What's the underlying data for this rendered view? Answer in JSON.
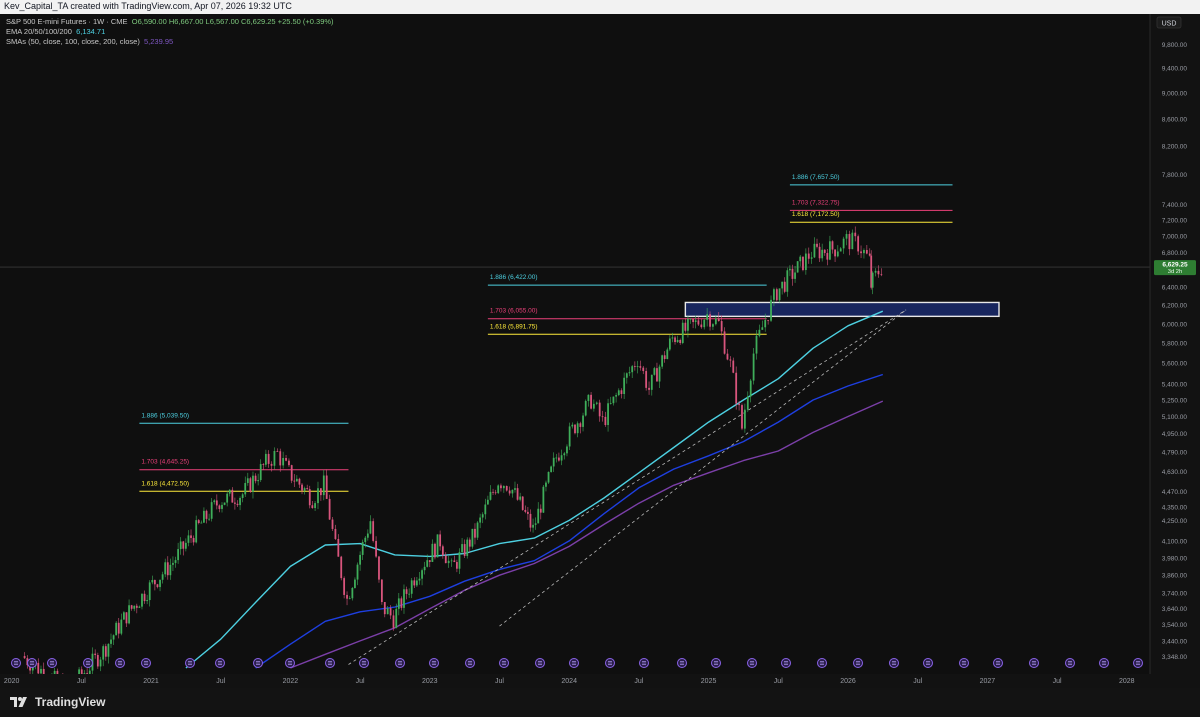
{
  "header": {
    "caption": "Kev_Capital_TA created with TradingView.com, Apr 07, 2026 19:32 UTC"
  },
  "legend": {
    "symbol": "S&P 500 E-mini Futures · 1W · CME",
    "ohlc": "O6,590.00  H6,667.00  L6,567.00  C6,629.25  +25.50 (+0.39%)",
    "ema_label": "EMA 20/50/100/200",
    "ema_value": "6,134.71",
    "sma_label": "SMAs (50, close, 100, close, 200, close)",
    "sma_value": "5,239.95"
  },
  "currency_label": "USD",
  "price_tag": {
    "value": "6,629.25",
    "sub": "3d 2h"
  },
  "footer": {
    "brand": "TradingView"
  },
  "colors": {
    "up": "#26a69a",
    "down": "#ef5350",
    "up_candle": "#3fae5a",
    "down_candle": "#d9557d",
    "fib_1886": "#4dd0e1",
    "fib_1703": "#ec407a",
    "fib_1618": "#ffeb3b",
    "ema": "#4dd0e1",
    "sma_blue": "#1e3fe0",
    "sma_purple": "#7b3fa8",
    "zone": "#1a2a6c"
  },
  "chart_data": {
    "type": "candlestick",
    "title": "S&P 500 E-mini Futures · 1W · CME",
    "x_ticks": [
      "2020",
      "Jul",
      "2021",
      "Jul",
      "2022",
      "Jul",
      "2023",
      "Jul",
      "2024",
      "Jul",
      "2025",
      "Jul",
      "2026",
      "Jul",
      "2027",
      "Jul",
      "2028"
    ],
    "x_tick_dates": [
      "2020-01",
      "2020-07",
      "2021-01",
      "2021-07",
      "2022-01",
      "2022-07",
      "2023-01",
      "2023-07",
      "2024-01",
      "2024-07",
      "2025-01",
      "2025-07",
      "2026-01",
      "2026-07",
      "2027-01",
      "2027-07",
      "2028-01"
    ],
    "y_ticks": [
      "9,800.00",
      "9,400.00",
      "9,000.00",
      "8,600.00",
      "8,200.00",
      "7,800.00",
      "7,400.00",
      "7,200.00",
      "7,000.00",
      "6,800.00",
      "6,400.00",
      "6,200.00",
      "6,000.00",
      "5,800.00",
      "5,600.00",
      "5,400.00",
      "5,250.00",
      "5,100.00",
      "4,950.00",
      "4,790.00",
      "4,630.00",
      "4,470.00",
      "4,350.00",
      "4,250.00",
      "4,100.00",
      "3,980.00",
      "3,860.00",
      "3,740.00",
      "3,640.00",
      "3,540.00",
      "3,440.00",
      "3,348.00"
    ],
    "y_scale": "log",
    "ylim": [
      3280,
      10300
    ],
    "xlim": [
      "2019-12",
      "2028-03"
    ],
    "last_price": 6629.25,
    "price_path": [
      [
        "2020-02",
        3350
      ],
      [
        "2020-06",
        3150
      ],
      [
        "2020-09",
        3380
      ],
      [
        "2020-11",
        3600
      ],
      [
        "2021-01",
        3780
      ],
      [
        "2021-03",
        3950
      ],
      [
        "2021-05",
        4180
      ],
      [
        "2021-07",
        4400
      ],
      [
        "2021-09",
        4450
      ],
      [
        "2021-11",
        4700
      ],
      [
        "2021-12",
        4780
      ],
      [
        "2022-01",
        4620
      ],
      [
        "2022-03",
        4420
      ],
      [
        "2022-04",
        4520
      ],
      [
        "2022-05",
        4050
      ],
      [
        "2022-06",
        3700
      ],
      [
        "2022-08",
        4250
      ],
      [
        "2022-09",
        3650
      ],
      [
        "2022-10",
        3580
      ],
      [
        "2022-12",
        3880
      ],
      [
        "2023-02",
        4100
      ],
      [
        "2023-03",
        3900
      ],
      [
        "2023-05",
        4150
      ],
      [
        "2023-07",
        4560
      ],
      [
        "2023-08",
        4520
      ],
      [
        "2023-10",
        4180
      ],
      [
        "2023-12",
        4750
      ],
      [
        "2024-03",
        5250
      ],
      [
        "2024-04",
        5050
      ],
      [
        "2024-07",
        5650
      ],
      [
        "2024-08",
        5350
      ],
      [
        "2024-10",
        5850
      ],
      [
        "2024-12",
        6000
      ],
      [
        "2025-01",
        6100
      ],
      [
        "2025-02",
        6000
      ],
      [
        "2025-03",
        5580
      ],
      [
        "2025-04",
        5000
      ],
      [
        "2025-05",
        5700
      ],
      [
        "2025-06",
        6050
      ],
      [
        "2025-07",
        6350
      ],
      [
        "2025-09",
        6650
      ],
      [
        "2025-10",
        6800
      ],
      [
        "2025-12",
        6850
      ],
      [
        "2026-01",
        6950
      ],
      [
        "2026-02",
        6900
      ],
      [
        "2026-03",
        6700
      ],
      [
        "2026-03",
        6420
      ],
      [
        "2026-04",
        6629
      ]
    ],
    "series": [
      {
        "name": "EMA 20/50/100/200",
        "color": "#4dd0e1",
        "points": [
          [
            "2021-04",
            3280
          ],
          [
            "2021-07",
            3450
          ],
          [
            "2021-10",
            3680
          ],
          [
            "2022-01",
            3920
          ],
          [
            "2022-04",
            4070
          ],
          [
            "2022-07",
            4080
          ],
          [
            "2022-10",
            4000
          ],
          [
            "2023-01",
            3990
          ],
          [
            "2023-04",
            4010
          ],
          [
            "2023-07",
            4080
          ],
          [
            "2023-10",
            4120
          ],
          [
            "2024-01",
            4250
          ],
          [
            "2024-04",
            4420
          ],
          [
            "2024-07",
            4620
          ],
          [
            "2024-10",
            4830
          ],
          [
            "2025-01",
            5050
          ],
          [
            "2025-04",
            5250
          ],
          [
            "2025-07",
            5450
          ],
          [
            "2025-10",
            5750
          ],
          [
            "2026-01",
            5980
          ],
          [
            "2026-04",
            6135
          ]
        ]
      },
      {
        "name": "SMAs (50, close, 100, close, 200, close)",
        "color": "#1e3fe0",
        "points": [
          [
            "2021-10",
            3280
          ],
          [
            "2022-01",
            3420
          ],
          [
            "2022-04",
            3560
          ],
          [
            "2022-07",
            3620
          ],
          [
            "2022-10",
            3650
          ],
          [
            "2023-01",
            3720
          ],
          [
            "2023-04",
            3820
          ],
          [
            "2023-07",
            3900
          ],
          [
            "2023-10",
            3960
          ],
          [
            "2024-01",
            4100
          ],
          [
            "2024-04",
            4300
          ],
          [
            "2024-07",
            4500
          ],
          [
            "2024-10",
            4650
          ],
          [
            "2025-01",
            4760
          ],
          [
            "2025-04",
            4880
          ],
          [
            "2025-07",
            5050
          ],
          [
            "2025-10",
            5250
          ],
          [
            "2026-01",
            5380
          ],
          [
            "2026-04",
            5490
          ]
        ]
      },
      {
        "name": "SMAs (50, close, 100, close, 200, close)",
        "color": "#7b3fa8",
        "points": [
          [
            "2022-01",
            3280
          ],
          [
            "2022-04",
            3360
          ],
          [
            "2022-07",
            3440
          ],
          [
            "2022-10",
            3520
          ],
          [
            "2023-01",
            3640
          ],
          [
            "2023-04",
            3760
          ],
          [
            "2023-07",
            3860
          ],
          [
            "2023-10",
            3940
          ],
          [
            "2024-01",
            4060
          ],
          [
            "2024-04",
            4220
          ],
          [
            "2024-07",
            4380
          ],
          [
            "2024-10",
            4520
          ],
          [
            "2025-01",
            4620
          ],
          [
            "2025-04",
            4720
          ],
          [
            "2025-07",
            4800
          ],
          [
            "2025-10",
            4960
          ],
          [
            "2026-01",
            5100
          ],
          [
            "2026-04",
            5240
          ]
        ]
      },
      {
        "name": "trendline",
        "color": "#b8b8b8",
        "points": [
          [
            "2022-06",
            3300
          ],
          [
            "2026-06",
            6150
          ]
        ]
      },
      {
        "name": "trendline",
        "color": "#b8b8b8",
        "points": [
          [
            "2023-07",
            3530
          ],
          [
            "2026-06",
            6150
          ]
        ]
      }
    ],
    "fib_levels": [
      {
        "label": "1.886 (5,039.50)",
        "value": 5039.5,
        "color": "#4dd0e1",
        "from": "2020-12",
        "to": "2022-06"
      },
      {
        "label": "1.703 (4,645.25)",
        "value": 4645.25,
        "color": "#ec407a",
        "from": "2020-12",
        "to": "2022-06"
      },
      {
        "label": "1.618 (4,472.50)",
        "value": 4472.5,
        "color": "#ffeb3b",
        "from": "2020-12",
        "to": "2022-06"
      },
      {
        "label": "1.886 (6,422.00)",
        "value": 6422.0,
        "color": "#4dd0e1",
        "from": "2023-06",
        "to": "2025-06"
      },
      {
        "label": "1.703 (6,055.00)",
        "value": 6055.0,
        "color": "#ec407a",
        "from": "2023-06",
        "to": "2025-06"
      },
      {
        "label": "1.618 (5,891.75)",
        "value": 5891.75,
        "color": "#ffeb3b",
        "from": "2023-06",
        "to": "2025-06"
      },
      {
        "label": "1.886 (7,657.50)",
        "value": 7657.5,
        "color": "#4dd0e1",
        "from": "2025-08",
        "to": "2026-10"
      },
      {
        "label": "1.703 (7,322.75)",
        "value": 7322.75,
        "color": "#ec407a",
        "from": "2025-08",
        "to": "2026-10"
      },
      {
        "label": "1.618 (7,172.50)",
        "value": 7172.5,
        "color": "#ffeb3b",
        "from": "2025-08",
        "to": "2026-10"
      }
    ],
    "zone": {
      "low": 6080,
      "high": 6230,
      "from": "2024-11",
      "to": "2027-02"
    },
    "grid": false,
    "legend": "top-left"
  }
}
